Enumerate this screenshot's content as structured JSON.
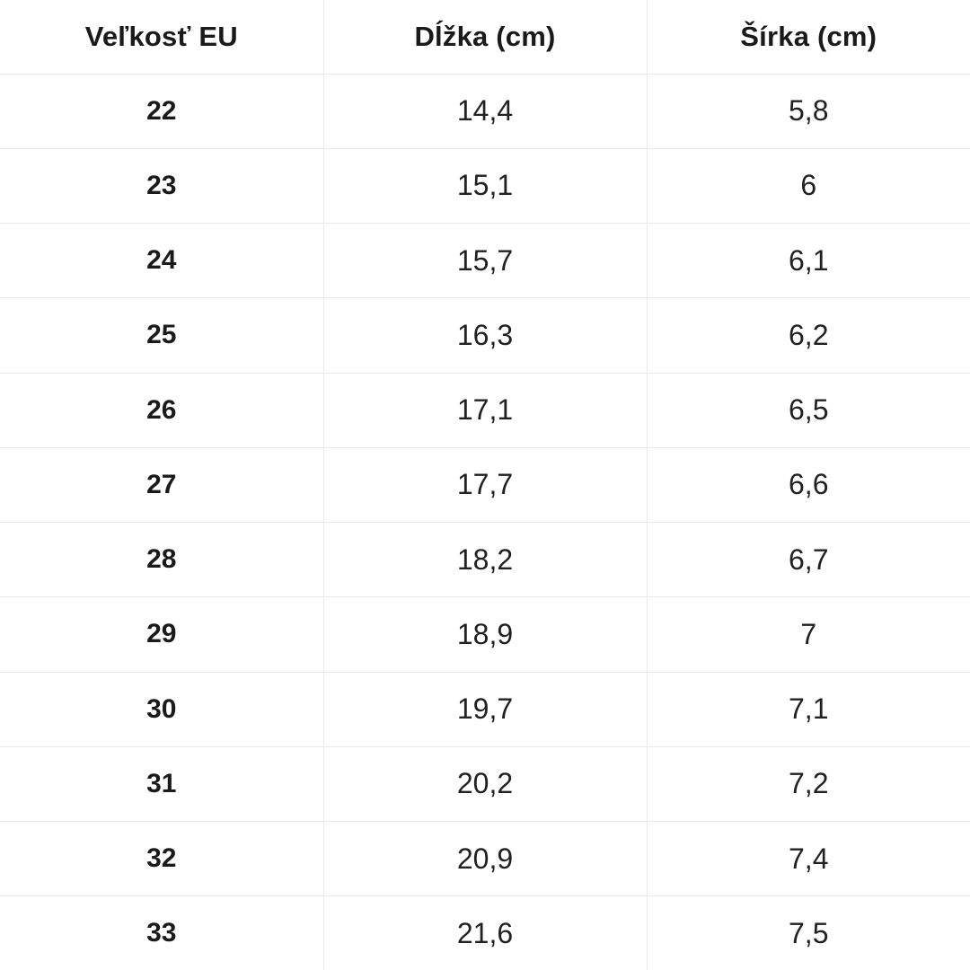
{
  "table": {
    "headers": {
      "size": "Veľkosť EU",
      "length": "Dĺžka (cm)",
      "width": "Šírka (cm)"
    },
    "rows": [
      {
        "size": "22",
        "length": "14,4",
        "width": "5,8"
      },
      {
        "size": "23",
        "length": "15,1",
        "width": "6"
      },
      {
        "size": "24",
        "length": "15,7",
        "width": "6,1"
      },
      {
        "size": "25",
        "length": "16,3",
        "width": "6,2"
      },
      {
        "size": "26",
        "length": "17,1",
        "width": "6,5"
      },
      {
        "size": "27",
        "length": "17,7",
        "width": "6,6"
      },
      {
        "size": "28",
        "length": "18,2",
        "width": "6,7"
      },
      {
        "size": "29",
        "length": "18,9",
        "width": "7"
      },
      {
        "size": "30",
        "length": "19,7",
        "width": "7,1"
      },
      {
        "size": "31",
        "length": "20,2",
        "width": "7,2"
      },
      {
        "size": "32",
        "length": "20,9",
        "width": "7,4"
      },
      {
        "size": "33",
        "length": "21,6",
        "width": "7,5"
      }
    ],
    "grid_color": "#e9e9e9",
    "text_color": "#1a1a1a",
    "background_color": "#ffffff"
  },
  "chart_data": {
    "type": "table",
    "title": "",
    "columns": [
      "Veľkosť EU",
      "Dĺžka (cm)",
      "Šírka (cm)"
    ],
    "rows": [
      [
        "22",
        "14,4",
        "5,8"
      ],
      [
        "23",
        "15,1",
        "6"
      ],
      [
        "24",
        "15,7",
        "6,1"
      ],
      [
        "25",
        "16,3",
        "6,2"
      ],
      [
        "26",
        "17,1",
        "6,5"
      ],
      [
        "27",
        "17,7",
        "6,6"
      ],
      [
        "28",
        "18,2",
        "6,7"
      ],
      [
        "29",
        "18,9",
        "7"
      ],
      [
        "30",
        "19,7",
        "7,1"
      ],
      [
        "31",
        "20,2",
        "7,2"
      ],
      [
        "32",
        "20,9",
        "7,4"
      ],
      [
        "33",
        "21,6",
        "7,5"
      ]
    ]
  }
}
